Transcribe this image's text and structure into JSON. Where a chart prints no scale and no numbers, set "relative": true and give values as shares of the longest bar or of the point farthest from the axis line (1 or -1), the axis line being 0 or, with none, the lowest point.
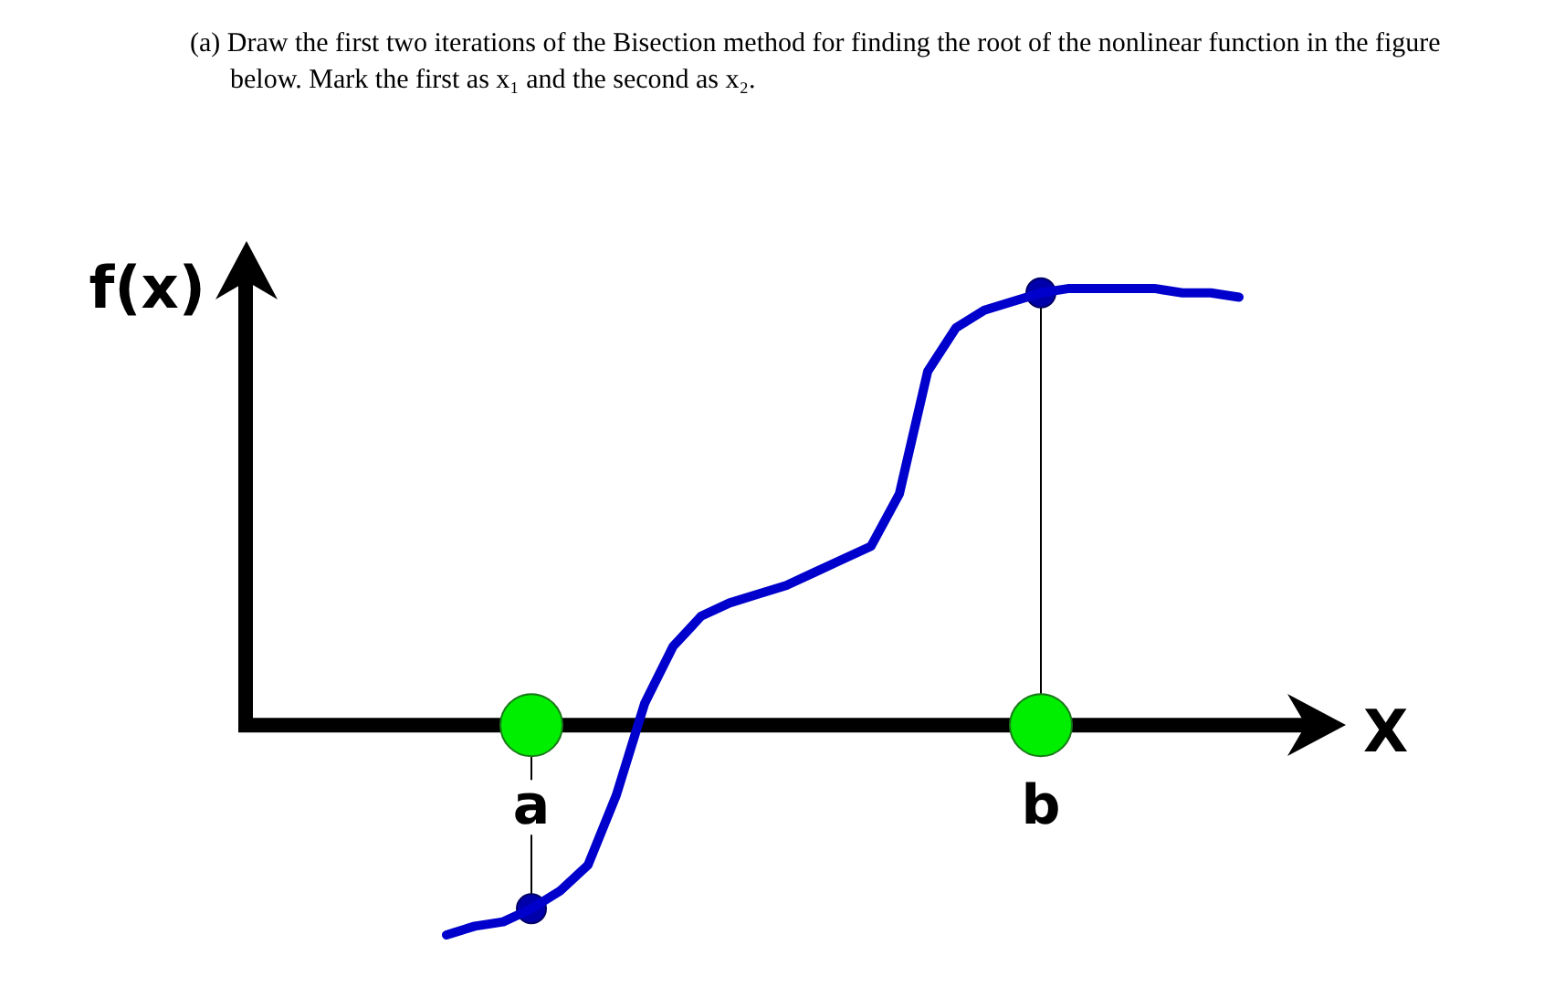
{
  "chart_data": {
    "type": "line",
    "relative": true,
    "title": "(a) Draw the first two iterations of the Bisection method for finding the root of the nonlinear function in the figure below. Mark the first as x₁ and the second as x₂.",
    "xlabel": "X",
    "ylabel": "f(x)",
    "legend": false,
    "tick_labels": "x",
    "categories": [
      null,
      null,
      null,
      "a",
      null,
      null,
      null,
      null,
      null,
      null,
      null,
      null,
      null,
      null,
      null,
      null,
      null,
      null,
      null,
      null,
      null,
      "b",
      null,
      null,
      null,
      null,
      null,
      null,
      null
    ],
    "series": [
      {
        "color": "#0000cc",
        "marker": "none",
        "line_style": "solid",
        "values": [
          -0.48,
          -0.46,
          -0.45,
          -0.42,
          -0.38,
          -0.32,
          -0.16,
          0.05,
          0.18,
          0.25,
          0.28,
          0.3,
          0.32,
          0.35,
          0.38,
          0.41,
          0.53,
          0.81,
          0.91,
          0.95,
          0.97,
          0.99,
          1,
          1,
          1,
          1,
          0.99,
          0.99,
          0.98
        ]
      },
      {
        "type": "lollipop",
        "color": "#0000aa",
        "marker": "circle",
        "x": [
          "a",
          "b"
        ],
        "values": [
          -0.42,
          0.99
        ]
      },
      {
        "type": "scatter",
        "color": "#00ee00",
        "marker": "circle",
        "x": [
          "a",
          "b"
        ],
        "values": [
          0,
          0
        ]
      }
    ]
  }
}
